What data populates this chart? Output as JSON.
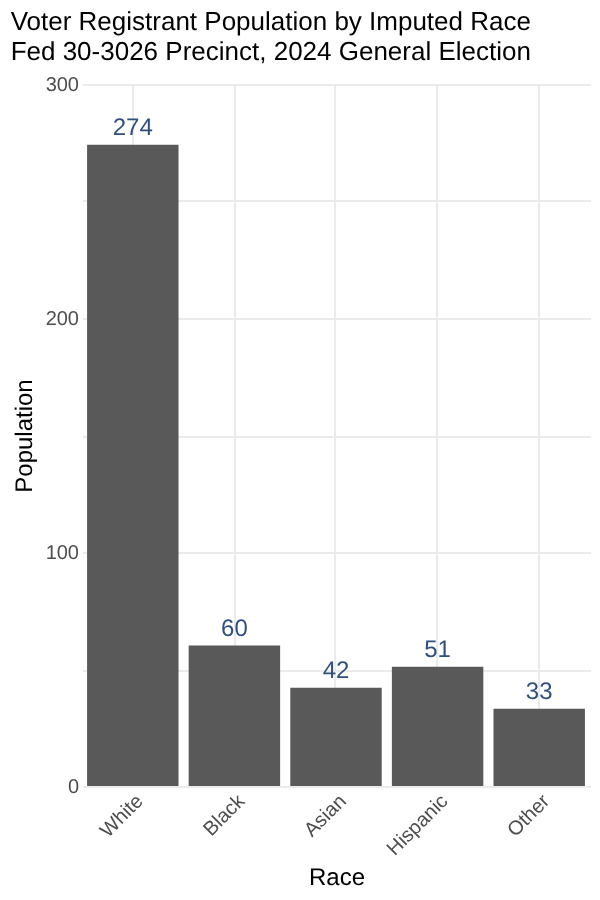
{
  "chart_data": {
    "type": "bar",
    "title": [
      "Voter Registrant Population by Imputed Race",
      "Fed 30-3026 Precinct,  2024 General Election"
    ],
    "xlabel": "Race",
    "ylabel": "Population",
    "categories": [
      "White",
      "Black",
      "Asian",
      "Hispanic",
      "Other"
    ],
    "values": [
      274,
      60,
      42,
      51,
      33
    ],
    "color": "#595959",
    "ylim": [
      0,
      300
    ],
    "yticks": [
      0,
      {
        "value": 50,
        "label": null
      },
      100,
      {
        "value": 150,
        "label": null
      },
      200,
      {
        "value": 250,
        "label": null
      },
      300
    ],
    "grid": true,
    "data_labels": true
  }
}
